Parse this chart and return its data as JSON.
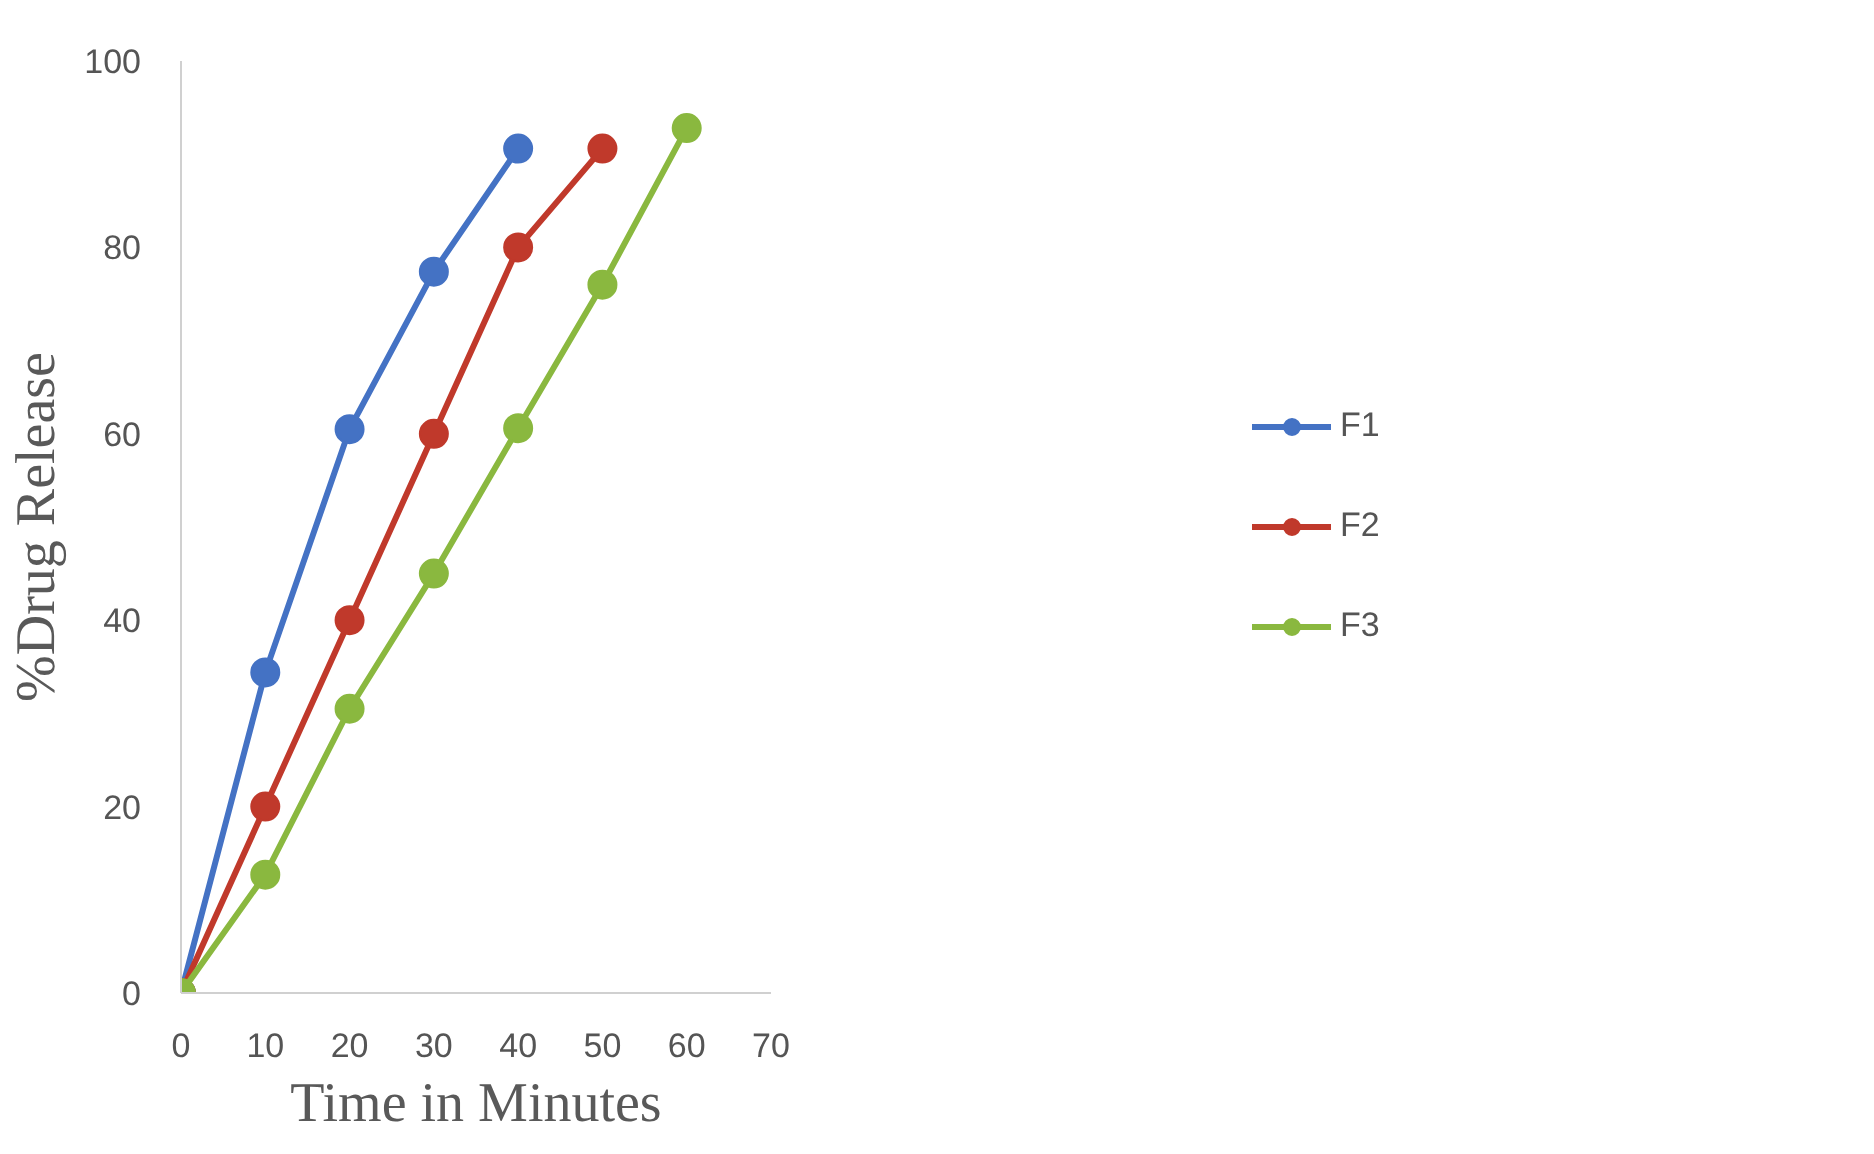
{
  "chart_data": {
    "type": "line",
    "xlabel": "Time in Minutes",
    "ylabel": "%Drug Release",
    "x": [
      0,
      10,
      20,
      30,
      40,
      50,
      60
    ],
    "series": [
      {
        "name": "F1",
        "color": "#4472c4",
        "values": [
          0,
          34.4,
          60.5,
          77.4,
          90.6,
          null,
          null
        ]
      },
      {
        "name": "F2",
        "color": "#c0392b",
        "values": [
          0,
          20,
          40,
          60,
          80,
          90.6,
          null
        ]
      },
      {
        "name": "F3",
        "color": "#8ab83f",
        "values": [
          0,
          12.7,
          30.5,
          45,
          60.6,
          76,
          92.8
        ]
      }
    ],
    "xlim": [
      0,
      70
    ],
    "xticks": [
      0,
      10,
      20,
      30,
      40,
      50,
      60,
      70
    ],
    "ylim": [
      0,
      100
    ],
    "yticks": [
      0,
      20,
      40,
      60,
      80,
      100
    ],
    "grid": false,
    "legend": "right",
    "marker": "circle",
    "line_style": "solid"
  }
}
